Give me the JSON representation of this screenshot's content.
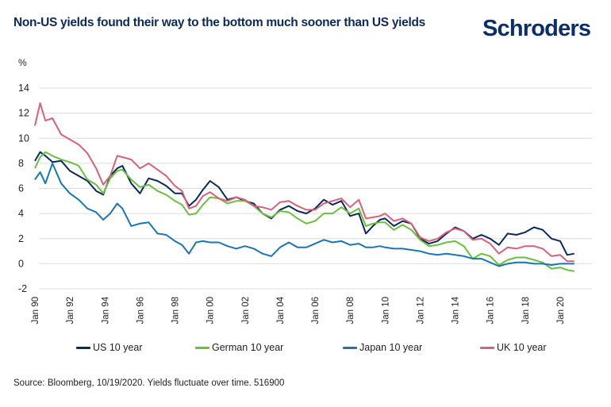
{
  "header": {
    "title": "Non-US yields found their way to the bottom much sooner than US yields",
    "logo": "Schroders"
  },
  "footer": {
    "source": "Source: Bloomberg, 10/19/2020. Yields fluctuate over time. 516900"
  },
  "chart_data": {
    "type": "line",
    "title": "Non-US yields found their way to the bottom much sooner than US yields",
    "xlabel": "",
    "ylabel": "%",
    "ylim": [
      -2,
      14
    ],
    "yticks": [
      -2,
      0,
      2,
      4,
      6,
      8,
      10,
      12,
      14
    ],
    "xlim": [
      1990.0,
      2020.8
    ],
    "xticks": [
      {
        "x": 1990,
        "label": "Jan 90"
      },
      {
        "x": 1992,
        "label": "Jan 92"
      },
      {
        "x": 1994,
        "label": "Jan 94"
      },
      {
        "x": 1996,
        "label": "Jan 96"
      },
      {
        "x": 1998,
        "label": "Jan 98"
      },
      {
        "x": 2000,
        "label": "Jan 00"
      },
      {
        "x": 2002,
        "label": "Jan 02"
      },
      {
        "x": 2004,
        "label": "Jan 04"
      },
      {
        "x": 2006,
        "label": "Jan 06"
      },
      {
        "x": 2008,
        "label": "Jan 08"
      },
      {
        "x": 2010,
        "label": "Jan 10"
      },
      {
        "x": 2012,
        "label": "Jan 12"
      },
      {
        "x": 2014,
        "label": "Jan 14"
      },
      {
        "x": 2016,
        "label": "Jan 16"
      },
      {
        "x": 2018,
        "label": "Jan 18"
      },
      {
        "x": 2020,
        "label": "Jan 20"
      }
    ],
    "grid": true,
    "legend_position": "bottom",
    "x": [
      1990.0,
      1990.3,
      1990.6,
      1991.0,
      1991.5,
      1992.0,
      1992.5,
      1993.0,
      1993.5,
      1993.9,
      1994.3,
      1994.7,
      1995.0,
      1995.5,
      1996.0,
      1996.5,
      1997.0,
      1997.5,
      1998.0,
      1998.4,
      1998.8,
      1999.2,
      1999.6,
      2000.0,
      2000.5,
      2001.0,
      2001.5,
      2002.0,
      2002.5,
      2003.0,
      2003.5,
      2004.0,
      2004.5,
      2005.0,
      2005.5,
      2006.0,
      2006.5,
      2007.0,
      2007.5,
      2008.0,
      2008.5,
      2008.9,
      2009.3,
      2009.7,
      2010.0,
      2010.5,
      2011.0,
      2011.5,
      2012.0,
      2012.5,
      2013.0,
      2013.5,
      2014.0,
      2014.5,
      2015.0,
      2015.5,
      2016.0,
      2016.5,
      2017.0,
      2017.5,
      2018.0,
      2018.5,
      2019.0,
      2019.5,
      2020.0,
      2020.4,
      2020.8
    ],
    "series": [
      {
        "name": "US 10 year",
        "color": "#0b2a5b",
        "values": [
          8.2,
          8.9,
          8.6,
          8.1,
          8.2,
          7.4,
          7.0,
          6.6,
          5.8,
          5.5,
          7.0,
          7.6,
          7.8,
          6.4,
          5.6,
          6.8,
          6.6,
          6.2,
          5.6,
          5.6,
          4.6,
          5.1,
          5.9,
          6.6,
          6.1,
          5.1,
          5.3,
          5.0,
          4.8,
          4.0,
          3.6,
          4.3,
          4.6,
          4.2,
          4.0,
          4.4,
          5.1,
          4.7,
          5.0,
          3.8,
          4.0,
          2.4,
          3.0,
          3.5,
          3.6,
          3.0,
          3.4,
          3.2,
          2.0,
          1.6,
          1.8,
          2.4,
          2.9,
          2.6,
          2.0,
          2.3,
          2.0,
          1.5,
          2.4,
          2.3,
          2.5,
          2.9,
          2.7,
          2.0,
          1.8,
          0.7,
          0.8
        ]
      },
      {
        "name": "German 10 year",
        "color": "#6bbf3e",
        "values": [
          7.6,
          8.5,
          8.9,
          8.6,
          8.3,
          8.1,
          7.8,
          6.7,
          6.3,
          5.6,
          6.8,
          7.4,
          7.5,
          6.7,
          6.1,
          6.3,
          5.8,
          5.5,
          5.0,
          4.7,
          3.9,
          4.0,
          4.7,
          5.3,
          5.2,
          4.8,
          5.0,
          5.0,
          4.6,
          4.0,
          3.7,
          4.2,
          4.1,
          3.6,
          3.2,
          3.4,
          4.0,
          4.0,
          4.5,
          4.0,
          4.4,
          3.0,
          3.2,
          3.3,
          3.3,
          2.7,
          3.1,
          2.7,
          1.9,
          1.4,
          1.5,
          1.7,
          1.8,
          1.4,
          0.4,
          0.8,
          0.6,
          -0.1,
          0.3,
          0.5,
          0.5,
          0.3,
          0.1,
          -0.4,
          -0.3,
          -0.5,
          -0.6
        ]
      },
      {
        "name": "Japan 10 year",
        "color": "#1a75b5",
        "values": [
          6.7,
          7.3,
          6.4,
          8.0,
          6.4,
          5.6,
          5.1,
          4.4,
          4.1,
          3.5,
          4.0,
          4.8,
          4.4,
          3.0,
          3.2,
          3.3,
          2.4,
          2.3,
          1.8,
          1.5,
          0.8,
          1.7,
          1.8,
          1.7,
          1.7,
          1.4,
          1.2,
          1.4,
          1.2,
          0.8,
          0.6,
          1.3,
          1.7,
          1.3,
          1.3,
          1.6,
          1.9,
          1.7,
          1.8,
          1.5,
          1.6,
          1.3,
          1.3,
          1.4,
          1.3,
          1.2,
          1.2,
          1.1,
          1.0,
          0.8,
          0.7,
          0.8,
          0.7,
          0.6,
          0.4,
          0.4,
          0.1,
          -0.2,
          0.0,
          0.1,
          0.1,
          0.0,
          0.0,
          -0.1,
          0.0,
          0.0,
          0.0
        ]
      },
      {
        "name": "UK 10 year",
        "color": "#d9607a",
        "values": [
          11.0,
          12.8,
          11.4,
          11.6,
          10.3,
          9.9,
          9.5,
          8.8,
          7.6,
          6.3,
          7.0,
          8.6,
          8.5,
          8.3,
          7.6,
          8.0,
          7.5,
          7.0,
          6.2,
          5.8,
          4.4,
          4.6,
          5.4,
          5.7,
          5.2,
          5.0,
          5.3,
          5.1,
          4.6,
          4.5,
          4.3,
          4.9,
          5.0,
          4.6,
          4.3,
          4.3,
          4.8,
          5.0,
          5.2,
          4.5,
          5.1,
          3.6,
          3.7,
          3.8,
          4.0,
          3.4,
          3.6,
          3.2,
          2.1,
          1.8,
          2.0,
          2.5,
          2.8,
          2.6,
          1.9,
          2.0,
          1.6,
          0.8,
          1.3,
          1.2,
          1.4,
          1.4,
          1.2,
          0.6,
          0.7,
          0.2,
          0.2
        ]
      }
    ]
  },
  "legend": [
    {
      "label": "US 10 year",
      "color": "#0b2a5b"
    },
    {
      "label": "German 10 year",
      "color": "#6bbf3e"
    },
    {
      "label": "Japan 10 year",
      "color": "#1a75b5"
    },
    {
      "label": "UK 10 year",
      "color": "#d9607a"
    }
  ]
}
